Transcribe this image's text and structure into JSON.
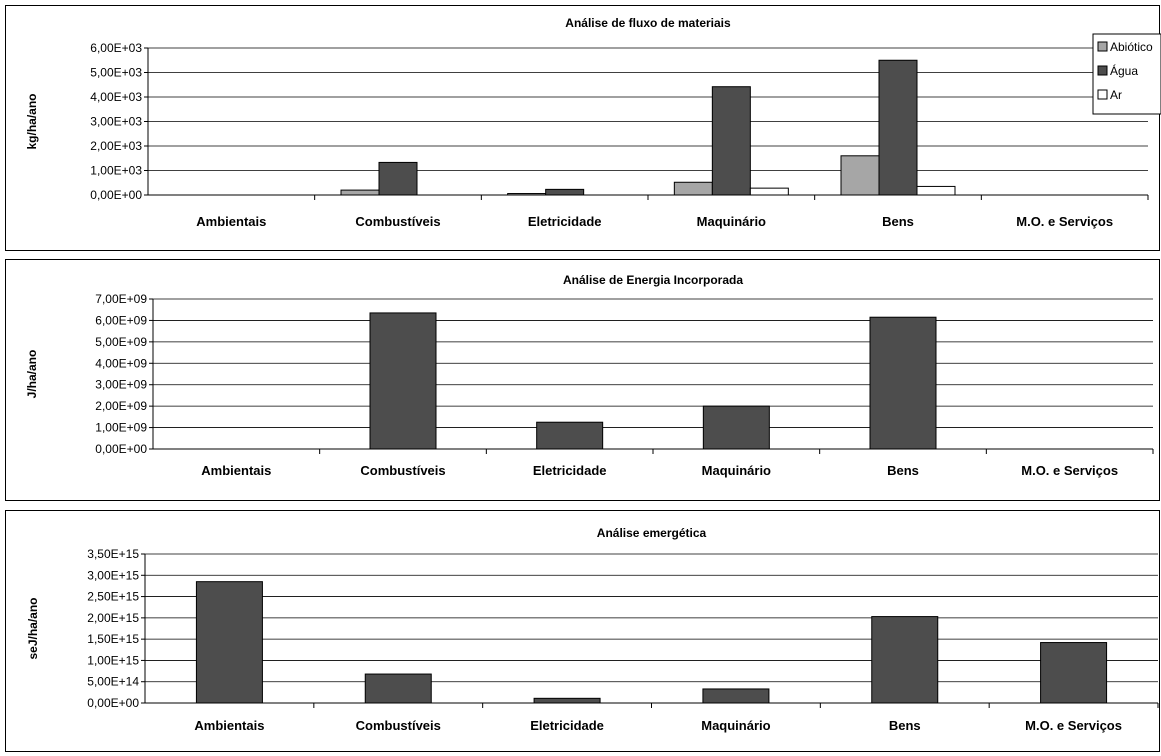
{
  "chart_data": [
    {
      "type": "bar",
      "title": "Análise de fluxo de materiais",
      "ylabel": "kg/ha/ano",
      "categories": [
        "Ambientais",
        "Combustíveis",
        "Eletricidade",
        "Maquinário",
        "Bens",
        "M.O. e Serviços"
      ],
      "yticks": [
        "0,00E+00",
        "1,00E+03",
        "2,00E+03",
        "3,00E+03",
        "4,00E+03",
        "5,00E+03",
        "6,00E+03"
      ],
      "ylim": [
        0,
        6000
      ],
      "grid": true,
      "legend": "top-right",
      "series": [
        {
          "name": "Abiótico",
          "color": "#a6a6a6",
          "values": [
            0,
            200,
            60,
            520,
            1600,
            0
          ]
        },
        {
          "name": "Água",
          "color": "#4d4d4d",
          "values": [
            0,
            1330,
            230,
            4420,
            5500,
            0
          ]
        },
        {
          "name": "Ar",
          "color": "#ffffff",
          "values": [
            0,
            0,
            0,
            280,
            350,
            0
          ]
        }
      ]
    },
    {
      "type": "bar",
      "title": "Análise de Energia Incorporada",
      "ylabel": "J/ha/ano",
      "categories": [
        "Ambientais",
        "Combustíveis",
        "Eletricidade",
        "Maquinário",
        "Bens",
        "M.O. e Serviços"
      ],
      "yticks": [
        "0,00E+00",
        "1,00E+09",
        "2,00E+09",
        "3,00E+09",
        "4,00E+09",
        "5,00E+09",
        "6,00E+09",
        "7,00E+09"
      ],
      "ylim": [
        0,
        7000000000
      ],
      "grid": true,
      "series": [
        {
          "color": "#4d4d4d",
          "values": [
            0,
            6350000000,
            1250000000,
            2000000000,
            6150000000,
            0
          ]
        }
      ]
    },
    {
      "type": "bar",
      "title": "Análise emergética",
      "ylabel": "seJ/ha/ano",
      "categories": [
        "Ambientais",
        "Combustíveis",
        "Eletricidade",
        "Maquinário",
        "Bens",
        "M.O. e Serviços"
      ],
      "yticks": [
        "0,00E+00",
        "5,00E+14",
        "1,00E+15",
        "1,50E+15",
        "2,00E+15",
        "2,50E+15",
        "3,00E+15",
        "3,50E+15"
      ],
      "ylim": [
        0,
        3500000000000000
      ],
      "grid": true,
      "series": [
        {
          "color": "#4d4d4d",
          "values": [
            2850000000000000,
            680000000000000,
            110000000000000,
            330000000000000,
            2030000000000000,
            1420000000000000
          ]
        }
      ]
    }
  ]
}
